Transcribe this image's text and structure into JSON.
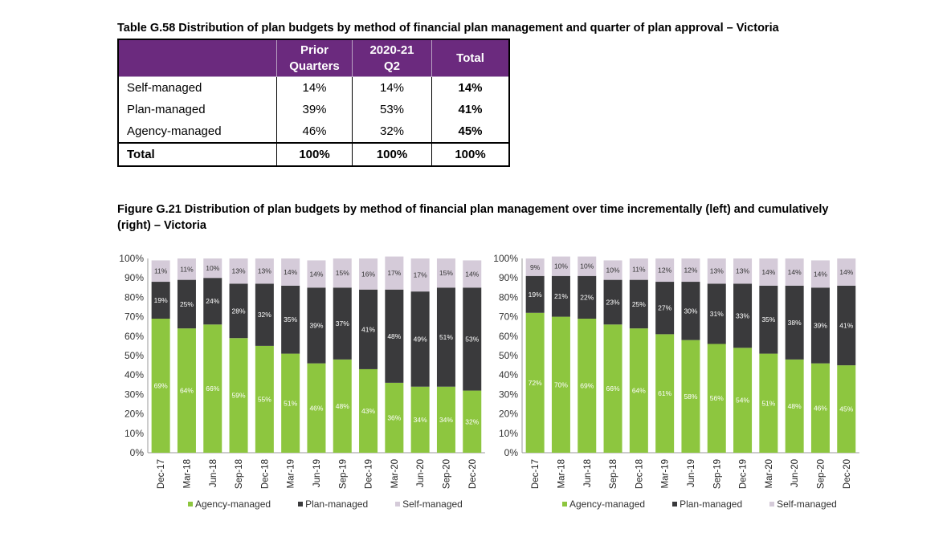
{
  "table": {
    "caption": "Table G.58 Distribution of plan budgets by method of financial plan management and quarter of plan approval – Victoria",
    "headers": [
      "",
      "Prior Quarters",
      "2020-21 Q2",
      "Total"
    ],
    "rows": [
      {
        "label": "Self-managed",
        "prior": "14%",
        "q2": "14%",
        "total": "14%"
      },
      {
        "label": "Plan-managed",
        "prior": "39%",
        "q2": "53%",
        "total": "41%"
      },
      {
        "label": "Agency-managed",
        "prior": "46%",
        "q2": "32%",
        "total": "45%"
      }
    ],
    "total_row": {
      "label": "Total",
      "prior": "100%",
      "q2": "100%",
      "total": "100%"
    }
  },
  "figure": {
    "caption": "Figure G.21 Distribution of plan budgets by method of financial plan management over time incrementally (left) and cumulatively (right) – Victoria"
  },
  "colors": {
    "agency": "#8dc63f",
    "plan": "#3a3a3c",
    "self": "#d5cbd9",
    "header": "#6b2a7e"
  },
  "chart_data": [
    {
      "type": "bar",
      "stacked": true,
      "categories": [
        "Dec-17",
        "Mar-18",
        "Jun-18",
        "Sep-18",
        "Dec-18",
        "Mar-19",
        "Jun-19",
        "Sep-19",
        "Dec-19",
        "Mar-20",
        "Jun-20",
        "Sep-20",
        "Dec-20"
      ],
      "series": [
        {
          "name": "Agency-managed",
          "values": [
            69,
            64,
            66,
            59,
            55,
            51,
            46,
            48,
            43,
            36,
            34,
            34,
            32
          ]
        },
        {
          "name": "Plan-managed",
          "values": [
            19,
            25,
            24,
            28,
            32,
            35,
            39,
            37,
            41,
            48,
            49,
            51,
            53
          ]
        },
        {
          "name": "Self-managed",
          "values": [
            11,
            11,
            10,
            13,
            13,
            14,
            14,
            15,
            16,
            17,
            17,
            15,
            14
          ]
        }
      ],
      "yticks": [
        "0%",
        "10%",
        "20%",
        "30%",
        "40%",
        "50%",
        "60%",
        "70%",
        "80%",
        "90%",
        "100%"
      ],
      "ylim": [
        0,
        100
      ],
      "legend": "bottom"
    },
    {
      "type": "bar",
      "stacked": true,
      "categories": [
        "Dec-17",
        "Mar-18",
        "Jun-18",
        "Sep-18",
        "Dec-18",
        "Mar-19",
        "Jun-19",
        "Sep-19",
        "Dec-19",
        "Mar-20",
        "Jun-20",
        "Sep-20",
        "Dec-20"
      ],
      "series": [
        {
          "name": "Agency-managed",
          "values": [
            72,
            70,
            69,
            66,
            64,
            61,
            58,
            56,
            54,
            51,
            48,
            46,
            45
          ]
        },
        {
          "name": "Plan-managed",
          "values": [
            19,
            21,
            22,
            23,
            25,
            27,
            30,
            31,
            33,
            35,
            38,
            39,
            41
          ]
        },
        {
          "name": "Self-managed",
          "values": [
            9,
            10,
            10,
            10,
            11,
            12,
            12,
            13,
            13,
            14,
            14,
            14,
            14
          ]
        }
      ],
      "yticks": [
        "0%",
        "10%",
        "20%",
        "30%",
        "40%",
        "50%",
        "60%",
        "70%",
        "80%",
        "90%",
        "100%"
      ],
      "ylim": [
        0,
        100
      ],
      "legend": "bottom"
    }
  ]
}
